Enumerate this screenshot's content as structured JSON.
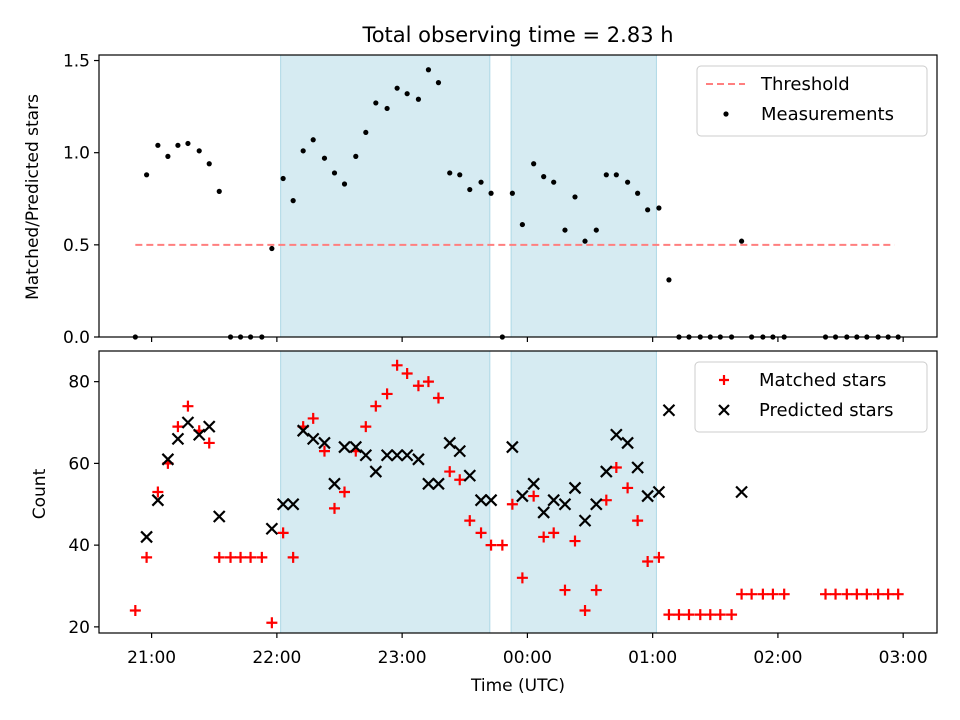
{
  "chart_data": {
    "title": "Total observing time = 2.83 h",
    "xlabel": "Time (UTC)",
    "x_unit": "hours after 21:00 UTC (observing night)",
    "xticks": [
      {
        "x": 0,
        "label": "21:00"
      },
      {
        "x": 1,
        "label": "22:00"
      },
      {
        "x": 2,
        "label": "23:00"
      },
      {
        "x": 3,
        "label": "00:00"
      },
      {
        "x": 4,
        "label": "01:00"
      },
      {
        "x": 5,
        "label": "02:00"
      },
      {
        "x": 6,
        "label": "03:00"
      }
    ],
    "xlim": [
      -0.42,
      6.27
    ],
    "shaded_intervals": [
      [
        1.03,
        2.7
      ],
      [
        2.87,
        4.03
      ]
    ],
    "panels": [
      {
        "type": "scatter",
        "ylabel": "Matched/Predicted stars",
        "ylim": [
          0,
          1.53
        ],
        "yticks": [
          0.0,
          0.5,
          1.0,
          1.5
        ],
        "ytick_labels": [
          "0.0",
          "0.5",
          "1.0",
          "1.5"
        ],
        "legend_position": "top-right",
        "threshold": {
          "name": "Threshold",
          "value": 0.5,
          "x_range": [
            -0.13,
            5.93
          ],
          "color": "#ff7f7f"
        },
        "series": [
          {
            "name": "Measurements",
            "color": "#000000",
            "points": [
              [
                -0.13,
                0.0
              ],
              [
                -0.04,
                0.88
              ],
              [
                0.05,
                1.04
              ],
              [
                0.13,
                0.98
              ],
              [
                0.21,
                1.04
              ],
              [
                0.29,
                1.05
              ],
              [
                0.38,
                1.01
              ],
              [
                0.46,
                0.94
              ],
              [
                0.54,
                0.79
              ],
              [
                0.63,
                0.0
              ],
              [
                0.71,
                0.0
              ],
              [
                0.79,
                0.0
              ],
              [
                0.88,
                0.0
              ],
              [
                0.96,
                0.48
              ],
              [
                1.05,
                0.86
              ],
              [
                1.13,
                0.74
              ],
              [
                1.21,
                1.01
              ],
              [
                1.29,
                1.07
              ],
              [
                1.38,
                0.97
              ],
              [
                1.46,
                0.89
              ],
              [
                1.54,
                0.83
              ],
              [
                1.63,
                0.98
              ],
              [
                1.71,
                1.11
              ],
              [
                1.79,
                1.27
              ],
              [
                1.88,
                1.24
              ],
              [
                1.96,
                1.35
              ],
              [
                2.04,
                1.32
              ],
              [
                2.13,
                1.29
              ],
              [
                2.21,
                1.45
              ],
              [
                2.29,
                1.38
              ],
              [
                2.38,
                0.89
              ],
              [
                2.46,
                0.88
              ],
              [
                2.54,
                0.8
              ],
              [
                2.63,
                0.84
              ],
              [
                2.71,
                0.78
              ],
              [
                2.8,
                0.0
              ],
              [
                2.88,
                0.78
              ],
              [
                2.96,
                0.61
              ],
              [
                3.05,
                0.94
              ],
              [
                3.13,
                0.87
              ],
              [
                3.21,
                0.84
              ],
              [
                3.3,
                0.58
              ],
              [
                3.38,
                0.76
              ],
              [
                3.46,
                0.52
              ],
              [
                3.55,
                0.58
              ],
              [
                3.63,
                0.88
              ],
              [
                3.71,
                0.88
              ],
              [
                3.8,
                0.84
              ],
              [
                3.88,
                0.78
              ],
              [
                3.96,
                0.69
              ],
              [
                4.05,
                0.7
              ],
              [
                4.13,
                0.31
              ],
              [
                4.21,
                0.0
              ],
              [
                4.29,
                0.0
              ],
              [
                4.38,
                0.0
              ],
              [
                4.46,
                0.0
              ],
              [
                4.54,
                0.0
              ],
              [
                4.63,
                0.0
              ],
              [
                4.71,
                0.52
              ],
              [
                4.79,
                0.0
              ],
              [
                4.88,
                0.0
              ],
              [
                4.96,
                0.0
              ],
              [
                5.05,
                0.0
              ],
              [
                5.38,
                0.0
              ],
              [
                5.46,
                0.0
              ],
              [
                5.55,
                0.0
              ],
              [
                5.63,
                0.0
              ],
              [
                5.71,
                0.0
              ],
              [
                5.8,
                0.0
              ],
              [
                5.88,
                0.0
              ],
              [
                5.96,
                0.0
              ]
            ]
          }
        ]
      },
      {
        "type": "scatter",
        "ylabel": "Count",
        "ylim": [
          18.5,
          87.5
        ],
        "yticks": [
          20,
          40,
          60,
          80
        ],
        "ytick_labels": [
          "20",
          "40",
          "60",
          "80"
        ],
        "legend_position": "top-right",
        "series": [
          {
            "name": "Matched stars",
            "marker": "+",
            "color": "#ff0000",
            "points": [
              [
                -0.13,
                24
              ],
              [
                -0.04,
                37
              ],
              [
                0.05,
                53
              ],
              [
                0.13,
                60
              ],
              [
                0.21,
                69
              ],
              [
                0.29,
                74
              ],
              [
                0.38,
                68
              ],
              [
                0.46,
                65
              ],
              [
                0.54,
                37
              ],
              [
                0.63,
                37
              ],
              [
                0.71,
                37
              ],
              [
                0.79,
                37
              ],
              [
                0.88,
                37
              ],
              [
                0.96,
                21
              ],
              [
                1.05,
                43
              ],
              [
                1.13,
                37
              ],
              [
                1.21,
                69
              ],
              [
                1.29,
                71
              ],
              [
                1.38,
                63
              ],
              [
                1.46,
                49
              ],
              [
                1.54,
                53
              ],
              [
                1.63,
                63
              ],
              [
                1.71,
                69
              ],
              [
                1.79,
                74
              ],
              [
                1.88,
                77
              ],
              [
                1.96,
                84
              ],
              [
                2.04,
                82
              ],
              [
                2.13,
                79
              ],
              [
                2.21,
                80
              ],
              [
                2.29,
                76
              ],
              [
                2.38,
                58
              ],
              [
                2.46,
                56
              ],
              [
                2.54,
                46
              ],
              [
                2.63,
                43
              ],
              [
                2.71,
                40
              ],
              [
                2.8,
                40
              ],
              [
                2.88,
                50
              ],
              [
                2.96,
                32
              ],
              [
                3.05,
                52
              ],
              [
                3.13,
                42
              ],
              [
                3.21,
                43
              ],
              [
                3.3,
                29
              ],
              [
                3.38,
                41
              ],
              [
                3.46,
                24
              ],
              [
                3.55,
                29
              ],
              [
                3.63,
                51
              ],
              [
                3.71,
                59
              ],
              [
                3.8,
                54
              ],
              [
                3.88,
                46
              ],
              [
                3.96,
                36
              ],
              [
                4.05,
                37
              ],
              [
                4.13,
                23
              ],
              [
                4.21,
                23
              ],
              [
                4.29,
                23
              ],
              [
                4.38,
                23
              ],
              [
                4.46,
                23
              ],
              [
                4.54,
                23
              ],
              [
                4.63,
                23
              ],
              [
                4.71,
                28
              ],
              [
                4.79,
                28
              ],
              [
                4.88,
                28
              ],
              [
                4.96,
                28
              ],
              [
                5.05,
                28
              ],
              [
                5.38,
                28
              ],
              [
                5.46,
                28
              ],
              [
                5.55,
                28
              ],
              [
                5.63,
                28
              ],
              [
                5.71,
                28
              ],
              [
                5.8,
                28
              ],
              [
                5.88,
                28
              ],
              [
                5.96,
                28
              ]
            ]
          },
          {
            "name": "Predicted stars",
            "marker": "x",
            "color": "#000000",
            "points": [
              [
                -0.04,
                42
              ],
              [
                0.05,
                51
              ],
              [
                0.13,
                61
              ],
              [
                0.21,
                66
              ],
              [
                0.29,
                70
              ],
              [
                0.38,
                67
              ],
              [
                0.46,
                69
              ],
              [
                0.54,
                47
              ],
              [
                0.96,
                44
              ],
              [
                1.05,
                50
              ],
              [
                1.13,
                50
              ],
              [
                1.21,
                68
              ],
              [
                1.29,
                66
              ],
              [
                1.38,
                65
              ],
              [
                1.46,
                55
              ],
              [
                1.54,
                64
              ],
              [
                1.63,
                64
              ],
              [
                1.71,
                62
              ],
              [
                1.79,
                58
              ],
              [
                1.88,
                62
              ],
              [
                1.96,
                62
              ],
              [
                2.04,
                62
              ],
              [
                2.13,
                61
              ],
              [
                2.21,
                55
              ],
              [
                2.29,
                55
              ],
              [
                2.38,
                65
              ],
              [
                2.46,
                63
              ],
              [
                2.54,
                57
              ],
              [
                2.63,
                51
              ],
              [
                2.71,
                51
              ],
              [
                2.88,
                64
              ],
              [
                2.96,
                52
              ],
              [
                3.05,
                55
              ],
              [
                3.13,
                48
              ],
              [
                3.21,
                51
              ],
              [
                3.3,
                50
              ],
              [
                3.38,
                54
              ],
              [
                3.46,
                46
              ],
              [
                3.55,
                50
              ],
              [
                3.63,
                58
              ],
              [
                3.71,
                67
              ],
              [
                3.8,
                65
              ],
              [
                3.88,
                59
              ],
              [
                3.96,
                52
              ],
              [
                4.05,
                53
              ],
              [
                4.13,
                73
              ],
              [
                4.71,
                53
              ]
            ]
          }
        ]
      }
    ]
  }
}
